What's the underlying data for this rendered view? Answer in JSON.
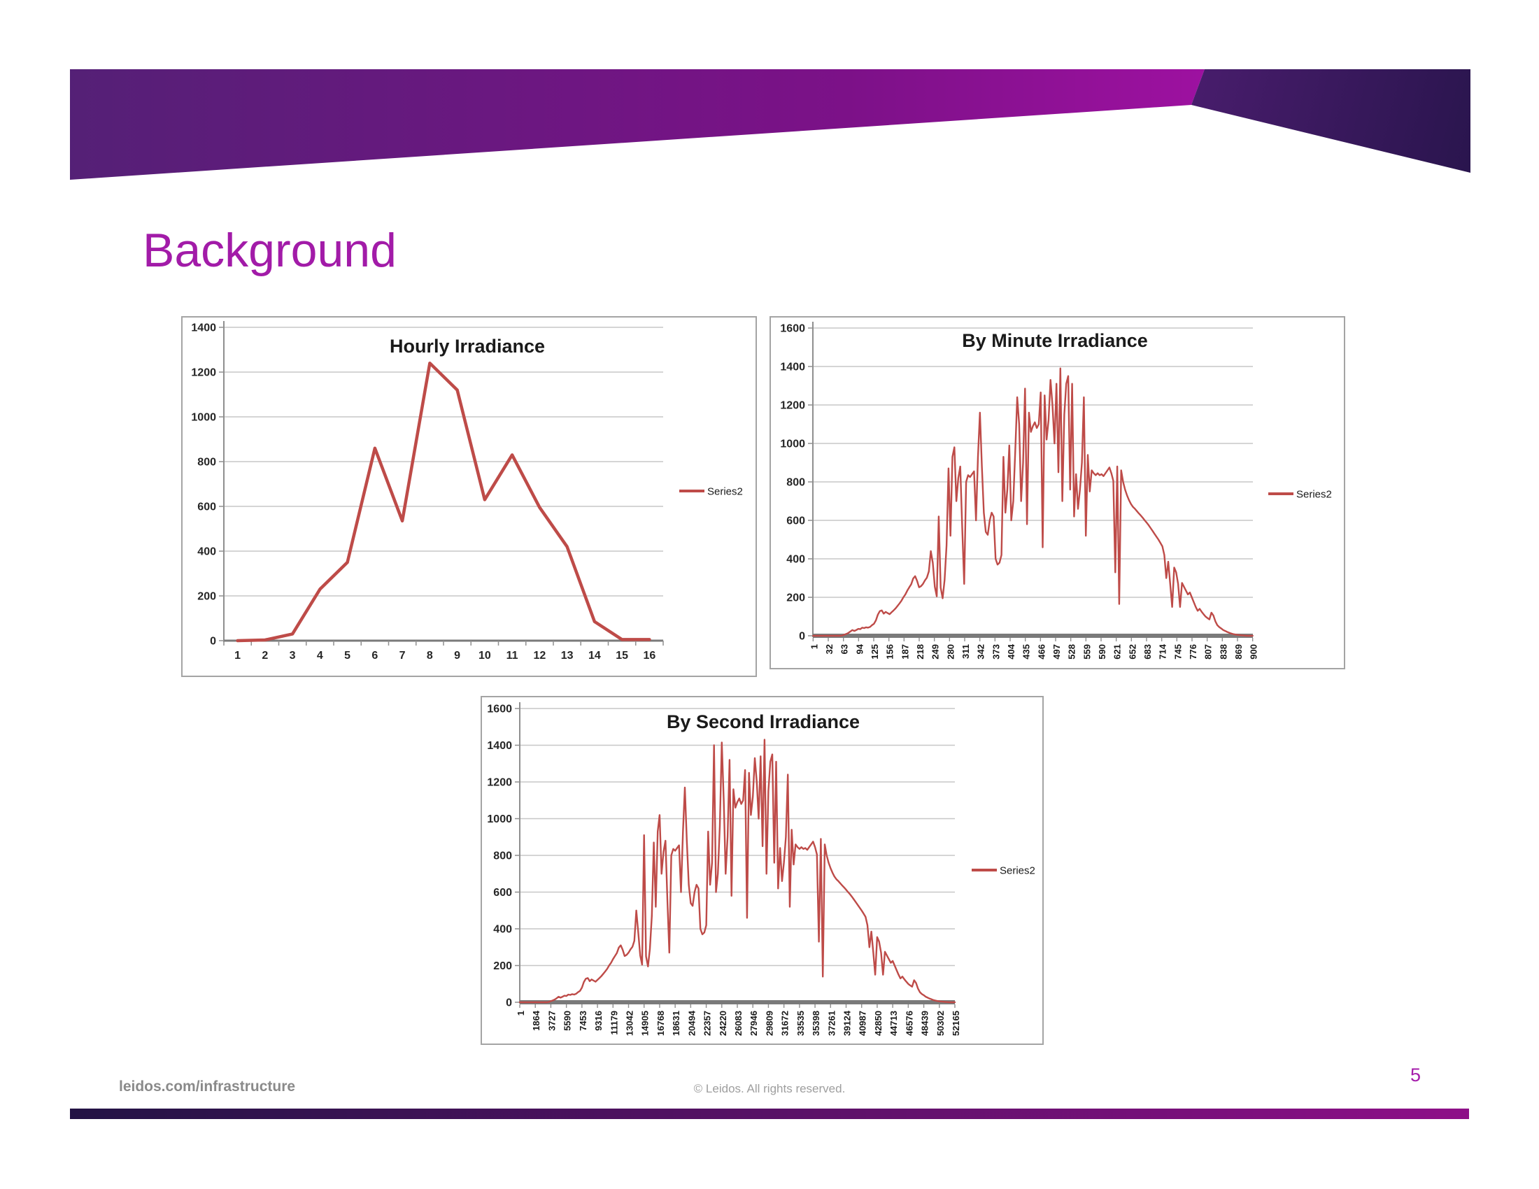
{
  "slide": {
    "title": "Background",
    "footer_left": "leidos.com/infrastructure",
    "footer_center": "© Leidos. All rights reserved.",
    "page_number": "5",
    "colors": {
      "title_text": "#A21BA8",
      "header_gradient_left": "#542076",
      "header_gradient_right": "#A011A2",
      "header_wedge_light": "#782B8E",
      "header_wedge_dark": "#2A154E",
      "footer_bar_left": "#221244",
      "footer_bar_right": "#8E1088",
      "footer_left_text": "#8A8A8A",
      "footer_center_text": "#9E9E9E",
      "page_number_text": "#A51CAB",
      "chart_line": "#BE4B48",
      "gridline": "#C7C7C7",
      "axis": "#7A7A7A"
    }
  },
  "chart_data": [
    {
      "type": "line",
      "title": "Hourly Irradiance",
      "legend": "Series2",
      "series_color": "#BE4B48",
      "grid": true,
      "legend_position": "right",
      "ylim": [
        0,
        1400
      ],
      "y_tick_labels": [
        "0",
        "200",
        "400",
        "600",
        "800",
        "1000",
        "1200",
        "1400"
      ],
      "x_mode": "category",
      "x_tick_labels": [
        "1",
        "2",
        "3",
        "4",
        "5",
        "6",
        "7",
        "8",
        "9",
        "10",
        "11",
        "12",
        "13",
        "14",
        "15",
        "16"
      ],
      "values": [
        0,
        3,
        30,
        230,
        350,
        860,
        535,
        1240,
        1120,
        630,
        830,
        595,
        420,
        85,
        5,
        5
      ]
    },
    {
      "type": "line",
      "title": "By Minute Irradiance",
      "legend": "Series2",
      "series_color": "#BE4B48",
      "grid": true,
      "legend_position": "right",
      "ylim": [
        0,
        1600
      ],
      "y_tick_labels": [
        "0",
        "200",
        "400",
        "600",
        "800",
        "1000",
        "1200",
        "1400",
        "1600"
      ],
      "x_mode": "numeric",
      "xlim": [
        1,
        900
      ],
      "x_tick_labels": [
        "1",
        "32",
        "63",
        "94",
        "125",
        "156",
        "187",
        "218",
        "249",
        "280",
        "311",
        "342",
        "373",
        "404",
        "435",
        "466",
        "497",
        "528",
        "559",
        "590",
        "621",
        "652",
        "683",
        "714",
        "745",
        "776",
        "807",
        "838",
        "869",
        "900"
      ],
      "values": [
        0,
        0,
        0,
        0,
        0,
        0,
        0,
        0,
        0,
        0,
        0,
        0,
        0,
        0,
        0,
        2,
        6,
        10,
        15,
        22,
        30,
        25,
        30,
        36,
        34,
        42,
        40,
        44,
        42,
        46,
        55,
        62,
        80,
        110,
        128,
        132,
        115,
        124,
        118,
        112,
        122,
        132,
        142,
        155,
        168,
        182,
        200,
        215,
        235,
        252,
        268,
        298,
        310,
        285,
        252,
        258,
        270,
        288,
        302,
        335,
        440,
        380,
        255,
        205,
        620,
        250,
        195,
        290,
        470,
        870,
        520,
        930,
        980,
        700,
        820,
        880,
        560,
        270,
        800,
        835,
        825,
        840,
        855,
        600,
        930,
        1160,
        880,
        640,
        540,
        525,
        600,
        640,
        620,
        400,
        370,
        380,
        420,
        930,
        640,
        760,
        990,
        600,
        700,
        960,
        1240,
        1100,
        700,
        900,
        1285,
        580,
        1160,
        1060,
        1090,
        1110,
        1080,
        1100,
        1265,
        460,
        1250,
        1020,
        1120,
        1330,
        1200,
        1000,
        1310,
        850,
        1390,
        700,
        1150,
        1310,
        1350,
        760,
        1310,
        620,
        840,
        660,
        760,
        900,
        1240,
        520,
        940,
        750,
        860,
        845,
        835,
        845,
        835,
        840,
        830,
        845,
        860,
        875,
        845,
        805,
        330,
        880,
        165,
        860,
        800,
        760,
        730,
        705,
        685,
        670,
        660,
        648,
        636,
        625,
        613,
        600,
        588,
        575,
        560,
        545,
        530,
        515,
        500,
        483,
        465,
        420,
        300,
        385,
        270,
        150,
        355,
        330,
        270,
        150,
        275,
        255,
        235,
        215,
        225,
        200,
        175,
        150,
        130,
        140,
        125,
        112,
        100,
        92,
        85,
        120,
        105,
        75,
        55,
        45,
        38,
        30,
        25,
        20,
        16,
        12,
        9,
        7,
        5,
        4,
        3,
        2,
        1,
        0,
        0,
        0,
        0
      ]
    },
    {
      "type": "line",
      "title": "By Second Irradiance",
      "legend": "Series2",
      "series_color": "#BE4B48",
      "grid": true,
      "legend_position": "right",
      "ylim": [
        0,
        1600
      ],
      "y_tick_labels": [
        "0",
        "200",
        "400",
        "600",
        "800",
        "1000",
        "1200",
        "1400",
        "1600"
      ],
      "x_mode": "numeric",
      "xlim": [
        1,
        52165
      ],
      "x_tick_labels": [
        "1",
        "1864",
        "3727",
        "5590",
        "7453",
        "9316",
        "11179",
        "13042",
        "14905",
        "16768",
        "18631",
        "20494",
        "22357",
        "24220",
        "26083",
        "27946",
        "29809",
        "31672",
        "33535",
        "35398",
        "37261",
        "39124",
        "40987",
        "42850",
        "44713",
        "46576",
        "48439",
        "50302",
        "52165"
      ],
      "values": [
        0,
        0,
        0,
        0,
        0,
        0,
        0,
        0,
        0,
        0,
        0,
        0,
        0,
        0,
        0,
        2,
        6,
        10,
        15,
        22,
        30,
        25,
        30,
        36,
        34,
        42,
        40,
        44,
        42,
        46,
        55,
        62,
        80,
        110,
        128,
        132,
        115,
        124,
        118,
        112,
        122,
        132,
        142,
        155,
        168,
        182,
        200,
        215,
        235,
        252,
        268,
        298,
        310,
        285,
        252,
        258,
        270,
        288,
        302,
        335,
        500,
        380,
        255,
        205,
        910,
        250,
        195,
        290,
        470,
        870,
        520,
        930,
        1020,
        700,
        820,
        880,
        560,
        270,
        800,
        835,
        825,
        840,
        855,
        600,
        930,
        1170,
        880,
        640,
        540,
        525,
        600,
        640,
        620,
        400,
        370,
        380,
        420,
        930,
        640,
        760,
        1400,
        600,
        700,
        960,
        1415,
        1100,
        700,
        900,
        1320,
        580,
        1160,
        1060,
        1090,
        1110,
        1080,
        1100,
        1265,
        460,
        1250,
        1020,
        1120,
        1330,
        1200,
        1000,
        1340,
        850,
        1430,
        700,
        1150,
        1310,
        1350,
        760,
        1310,
        620,
        840,
        660,
        760,
        900,
        1240,
        520,
        940,
        750,
        860,
        845,
        835,
        845,
        835,
        840,
        830,
        845,
        860,
        875,
        845,
        805,
        330,
        890,
        140,
        860,
        800,
        760,
        730,
        705,
        685,
        670,
        660,
        648,
        636,
        625,
        613,
        600,
        588,
        575,
        560,
        545,
        530,
        515,
        500,
        483,
        465,
        420,
        300,
        385,
        270,
        150,
        355,
        330,
        270,
        150,
        275,
        255,
        235,
        215,
        225,
        200,
        175,
        150,
        130,
        140,
        125,
        112,
        100,
        92,
        85,
        120,
        105,
        75,
        55,
        45,
        38,
        30,
        25,
        20,
        16,
        12,
        9,
        7,
        5,
        4,
        3,
        2,
        1,
        0,
        0,
        0,
        0
      ]
    }
  ]
}
